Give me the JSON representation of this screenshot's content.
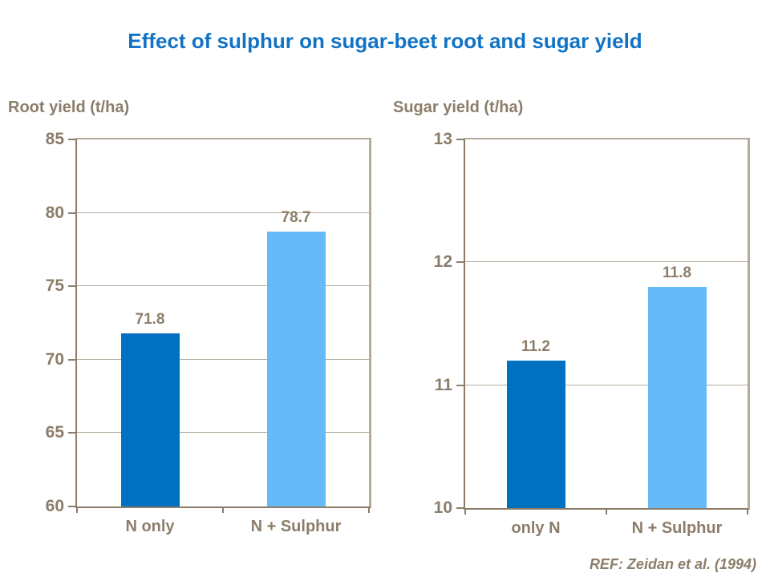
{
  "page": {
    "title": "Effect of sulphur on sugar-beet root and sugar yield",
    "ref_note": "REF: Zeidan et al. (1994)"
  },
  "colors": {
    "title_blue": "#1273C5",
    "bar_dark_blue": "#0070C0",
    "bar_light_blue": "#66BAF7",
    "text_brown": "#8C7D6A",
    "axis_brown": "#8C7D6A",
    "grid_tan": "#B5AA9B"
  },
  "chart_data": [
    {
      "type": "bar",
      "title": "Root yield (t/ha)",
      "categories": [
        "N only",
        "N + Sulphur"
      ],
      "values": [
        71.8,
        78.7
      ],
      "data_labels": [
        "71.8",
        "78.7"
      ],
      "bar_colors": [
        "#0070C0",
        "#66BAF7"
      ],
      "ylim": [
        60,
        85
      ],
      "yticks": [
        60,
        65,
        70,
        75,
        80,
        85
      ],
      "grid": true,
      "legend": "none",
      "xlabel": "",
      "ylabel": "Root yield (t/ha)"
    },
    {
      "type": "bar",
      "title": "Sugar yield (t/ha)",
      "categories": [
        "only N",
        "N + Sulphur"
      ],
      "values": [
        11.2,
        11.8
      ],
      "data_labels": [
        "11.2",
        "11.8"
      ],
      "bar_colors": [
        "#0070C0",
        "#66BAF7"
      ],
      "ylim": [
        10,
        13
      ],
      "yticks": [
        10,
        11,
        12,
        13
      ],
      "grid": true,
      "legend": "none",
      "xlabel": "",
      "ylabel": "Sugar yield (t/ha)"
    }
  ]
}
